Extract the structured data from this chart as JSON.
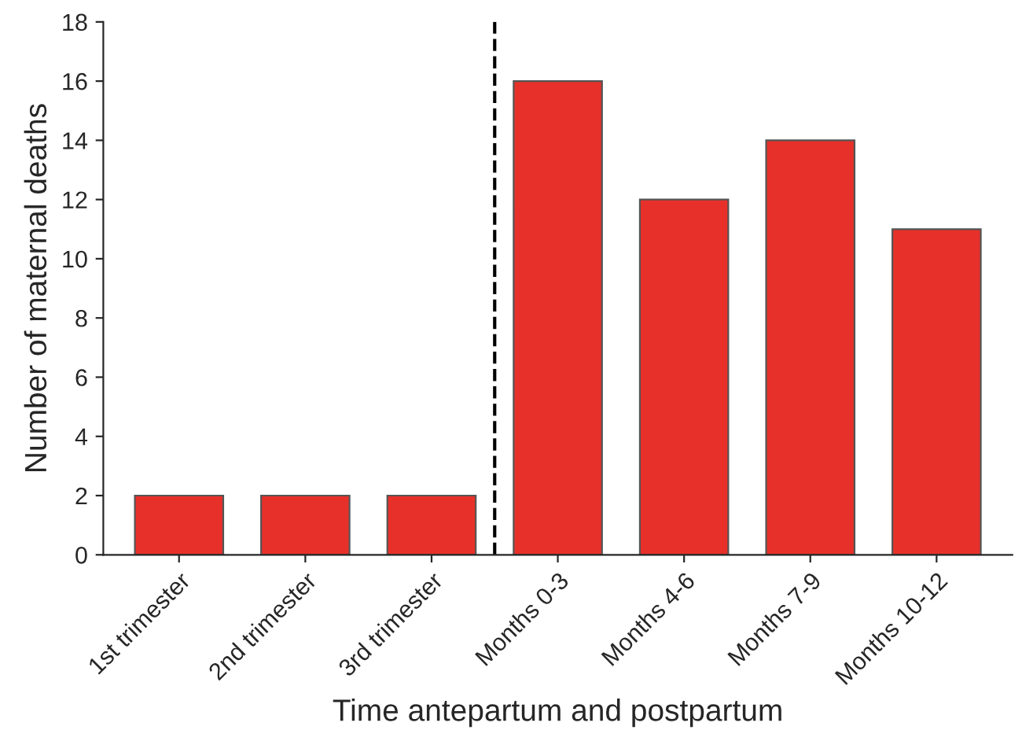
{
  "chart_data": {
    "type": "bar",
    "xlabel": "Time antepartum and postpartum",
    "ylabel": "Number of maternal deaths",
    "categories": [
      "1st trimester",
      "2nd trimester",
      "3rd trimester",
      "Months 0-3",
      "Months 4-6",
      "Months 7-9",
      "Months 10-12"
    ],
    "values": [
      2,
      2,
      2,
      16,
      12,
      14,
      11
    ],
    "color": "#e8302a",
    "ylim": [
      0,
      18
    ],
    "yticks": [
      0,
      2,
      4,
      6,
      8,
      10,
      12,
      14,
      16,
      18
    ],
    "grid": false,
    "legend": false
  }
}
